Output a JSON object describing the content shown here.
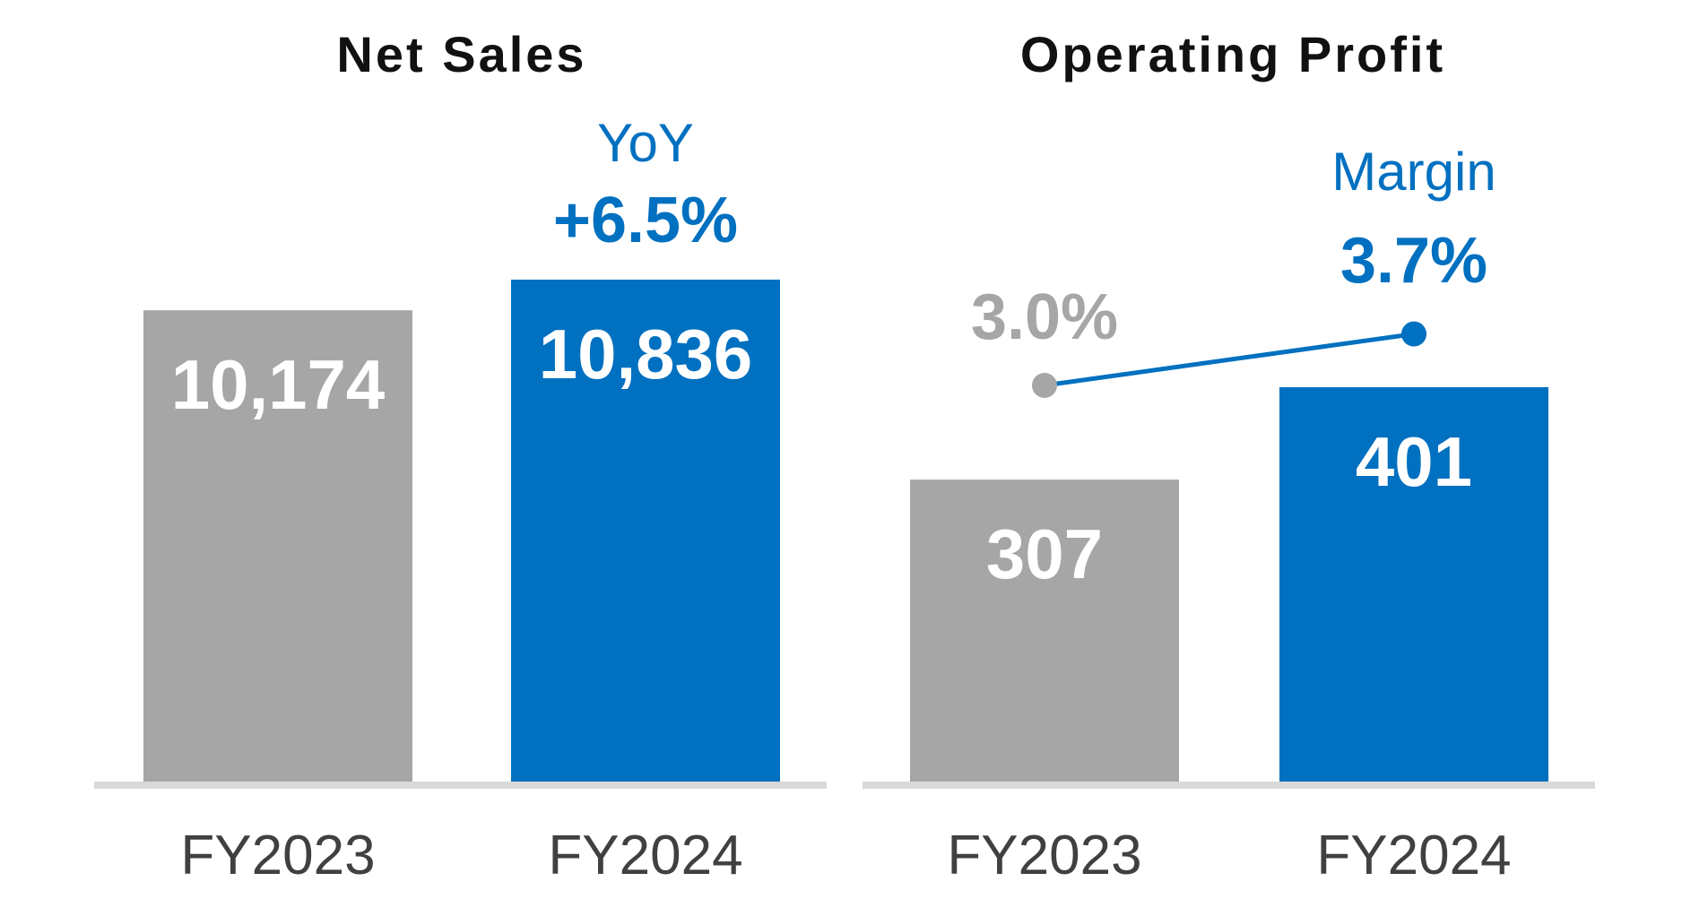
{
  "colors": {
    "prior": "#A6A6A6",
    "current": "#0070C0",
    "baseline": "#D9D9D9",
    "tick_text": "#404040",
    "title_text": "#111111"
  },
  "chart_data": [
    {
      "type": "bar",
      "title": "Net Sales",
      "categories": [
        "FY2023",
        "FY2024"
      ],
      "values": [
        10174,
        10836
      ],
      "value_labels": [
        "10,174",
        "10,836"
      ],
      "annotation": {
        "label": "YoY",
        "value": "+6.5%"
      },
      "grid": false
    },
    {
      "type": "bar",
      "title": "Operating Profit",
      "categories": [
        "FY2023",
        "FY2024"
      ],
      "values": [
        307,
        401
      ],
      "value_labels": [
        "307",
        "401"
      ],
      "line": {
        "values": [
          3.0,
          3.7
        ],
        "value_labels": [
          "3.0%",
          "3.7%"
        ]
      },
      "annotation": {
        "label": "Margin",
        "value": "3.7%"
      },
      "grid": false
    }
  ]
}
